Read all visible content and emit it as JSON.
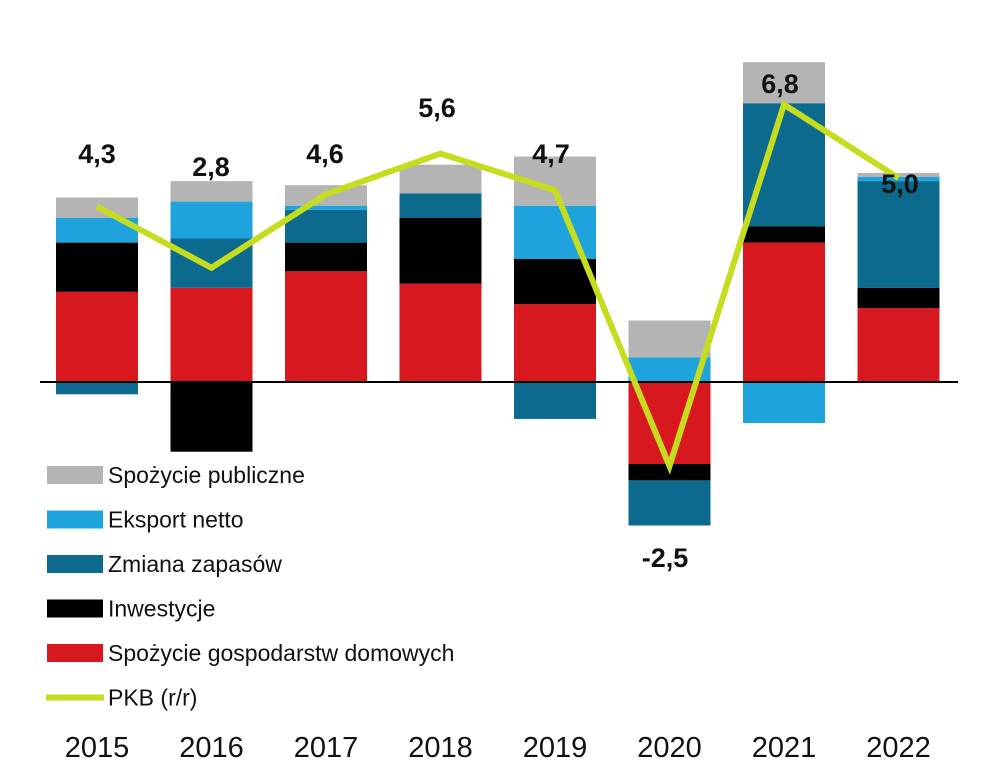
{
  "chart_data": {
    "type": "bar",
    "stacked": true,
    "title": "",
    "xlabel": "",
    "ylabel": "",
    "ylim": [
      -3.7,
      8.0
    ],
    "grid": false,
    "legend_position": "bottom-left",
    "categories": [
      "2015",
      "2016",
      "2017",
      "2018",
      "2019",
      "2020",
      "2021",
      "2022"
    ],
    "series": [
      {
        "name": "Spożycie gospodarstw domowych",
        "color": "#d7191f",
        "values": [
          2.2,
          2.3,
          2.7,
          2.4,
          1.9,
          -2.0,
          3.4,
          1.8
        ]
      },
      {
        "name": "Inwestycje",
        "color": "#000000",
        "values": [
          1.2,
          -1.7,
          0.7,
          1.6,
          1.1,
          -0.4,
          0.4,
          0.5
        ]
      },
      {
        "name": "Zmiana zapasów",
        "color": "#0d6a8f",
        "values": [
          -0.3,
          1.2,
          0.8,
          0.6,
          -0.9,
          -1.1,
          3.0,
          2.6
        ]
      },
      {
        "name": "Eksport netto",
        "color": "#1ea3dc",
        "values": [
          0.6,
          0.9,
          0.1,
          0.0,
          1.3,
          0.6,
          -1.0,
          0.1
        ]
      },
      {
        "name": "Spożycie publiczne",
        "color": "#b4b4b4",
        "values": [
          0.5,
          0.5,
          0.5,
          0.7,
          1.2,
          0.9,
          1.0,
          0.1
        ]
      }
    ],
    "line_series": {
      "name": "PKB (r/r)",
      "color": "#c6dc1e",
      "values": [
        4.3,
        2.8,
        4.6,
        5.6,
        4.7,
        -2.5,
        6.8,
        5.0
      ]
    },
    "data_labels": [
      "4,3",
      "2,8",
      "4,6",
      "5,6",
      "4,7",
      "-2,5",
      "6,8",
      "5,0"
    ],
    "legend": [
      {
        "label": "Spożycie publiczne",
        "color": "#b4b4b4",
        "kind": "box"
      },
      {
        "label": "Eksport netto",
        "color": "#1ea3dc",
        "kind": "box"
      },
      {
        "label": "Zmiana zapasów",
        "color": "#0d6a8f",
        "kind": "box"
      },
      {
        "label": "Inwestycje",
        "color": "#000000",
        "kind": "box"
      },
      {
        "label": "Spożycie gospodarstw domowych",
        "color": "#d7191f",
        "kind": "box"
      },
      {
        "label": "PKB (r/r)",
        "color": "#c6dc1e",
        "kind": "line"
      }
    ]
  }
}
